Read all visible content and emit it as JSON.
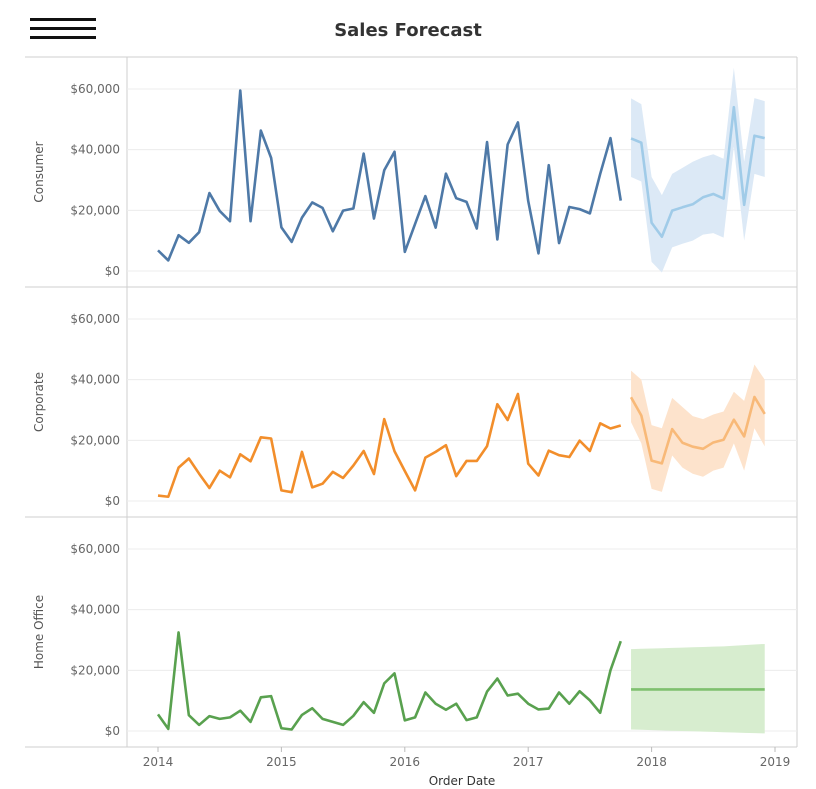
{
  "header": {
    "title": "Sales Forecast",
    "menu_icon": "hamburger-menu-icon"
  },
  "chart_data": {
    "type": "line",
    "title": "Sales Forecast",
    "xlabel": "Order Date",
    "x_ticks": [
      "2014",
      "2015",
      "2016",
      "2017",
      "2018",
      "2019"
    ],
    "x_range": [
      2014,
      2019
    ],
    "ylim": [
      0,
      65000
    ],
    "y_ticks": [
      "$0",
      "$20,000",
      "$40,000",
      "$60,000"
    ],
    "y_tick_values": [
      0,
      20000,
      40000,
      60000
    ],
    "grid": true,
    "panels": [
      {
        "label": "Consumer",
        "color": "#4e79a7",
        "forecast_color": "#a0cbe8",
        "band_color": "#dce9f6",
        "actual": [
          6800,
          3500,
          11800,
          9300,
          12800,
          25700,
          19800,
          16400,
          59500,
          16400,
          46300,
          37300,
          14400,
          9600,
          17600,
          22600,
          20800,
          13100,
          19900,
          20600,
          38700,
          17300,
          33200,
          39300,
          6300,
          15500,
          24700,
          14300,
          32100,
          24000,
          22800,
          14000,
          42500,
          10400,
          41700,
          49000,
          23100,
          5800,
          34900,
          9200,
          21100,
          20400,
          19000,
          32000,
          43800,
          23200
        ],
        "forecast": [
          43700,
          42300,
          15900,
          11300,
          19900,
          21000,
          22000,
          24300,
          25400,
          23900,
          54000,
          21800,
          44600,
          43800
        ],
        "upper": [
          56900,
          55000,
          31000,
          25000,
          32000,
          34000,
          36000,
          37500,
          38500,
          37000,
          67000,
          36000,
          57000,
          56000
        ],
        "lower": [
          31000,
          29500,
          3000,
          -500,
          7800,
          9000,
          10000,
          12000,
          12500,
          11000,
          41000,
          10000,
          32000,
          31000
        ]
      },
      {
        "label": "Corporate",
        "color": "#f28e2b",
        "forecast_color": "#f8b978",
        "band_color": "#fde3cc",
        "actual": [
          1800,
          1400,
          11000,
          14000,
          9000,
          4300,
          10000,
          7800,
          15400,
          13100,
          21000,
          20600,
          3500,
          2900,
          16200,
          4500,
          5700,
          9600,
          7600,
          11700,
          16500,
          8900,
          27000,
          16400,
          9900,
          3500,
          14300,
          16200,
          18400,
          8200,
          13200,
          13200,
          18100,
          31900,
          26700,
          35300,
          12300,
          8400,
          16600,
          15100,
          14500,
          19900,
          16500,
          25600,
          23900,
          24900
        ],
        "forecast": [
          34200,
          28200,
          13300,
          12400,
          23700,
          19200,
          17900,
          17200,
          19300,
          20200,
          26800,
          21300,
          34300,
          28700
        ],
        "upper": [
          43000,
          40000,
          25000,
          24000,
          34000,
          31000,
          28000,
          27000,
          28500,
          29500,
          36000,
          33000,
          45000,
          40000
        ],
        "lower": [
          26000,
          19000,
          4000,
          3000,
          15000,
          11000,
          9000,
          8000,
          10000,
          11000,
          19000,
          10000,
          24000,
          18000
        ]
      },
      {
        "label": "Home Office",
        "color": "#59a14f",
        "forecast_color": "#7fc06f",
        "band_color": "#d7edcf",
        "actual": [
          5500,
          700,
          32500,
          5200,
          2000,
          4900,
          4000,
          4500,
          6700,
          3000,
          11100,
          11500,
          900,
          500,
          5300,
          7500,
          4000,
          3000,
          2000,
          5000,
          9500,
          6000,
          15700,
          19000,
          3500,
          4500,
          12700,
          9000,
          7000,
          9000,
          3600,
          4500,
          13000,
          17300,
          11700,
          12300,
          9000,
          7100,
          7400,
          12700,
          9000,
          13100,
          10100,
          6000,
          20000,
          29600
        ],
        "forecast": [
          13700,
          13700,
          13700,
          13700,
          13700,
          13700,
          13700,
          13700,
          13700,
          13700,
          13700,
          13700,
          13700,
          13700
        ],
        "upper": [
          27000,
          27100,
          27200,
          27300,
          27400,
          27500,
          27600,
          27700,
          27800,
          27900,
          28100,
          28300,
          28500,
          28700
        ],
        "lower": [
          500,
          400,
          300,
          200,
          100,
          0,
          -100,
          -200,
          -300,
          -400,
          -500,
          -600,
          -700,
          -800
        ]
      }
    ]
  }
}
